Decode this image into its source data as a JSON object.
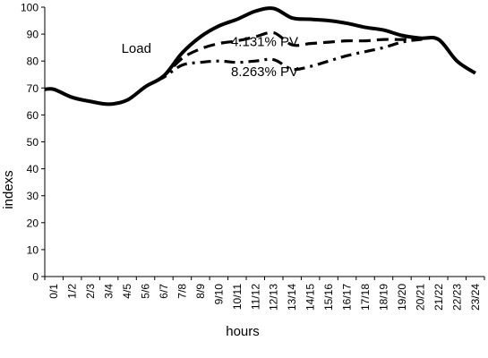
{
  "chart_data": {
    "type": "line",
    "xlabel": "hours",
    "ylabel": "indexs",
    "ylim": [
      0,
      100
    ],
    "yticks": [
      0,
      10,
      20,
      30,
      40,
      50,
      60,
      70,
      80,
      90,
      100
    ],
    "categories": [
      "0/1",
      "1/2",
      "2/3",
      "3/4",
      "4/5",
      "5/6",
      "6/7",
      "7/8",
      "8/9",
      "9/10",
      "10/11",
      "11/12",
      "12/13",
      "13/14",
      "14/15",
      "15/16",
      "16/17",
      "17/18",
      "18/19",
      "19/20",
      "20/21",
      "21/22",
      "22/23",
      "23/24"
    ],
    "grid": false,
    "series": [
      {
        "name": "Load",
        "style": "solid",
        "color": "#000000",
        "values": [
          69.5,
          66.5,
          65.0,
          64.0,
          65.5,
          70.5,
          74.5,
          83.0,
          89.0,
          93.0,
          95.5,
          98.5,
          99.5,
          96.0,
          95.5,
          95.0,
          94.0,
          92.5,
          91.5,
          89.5,
          88.5,
          88.0,
          80.0,
          75.5
        ]
      },
      {
        "name": "4.131% PV",
        "style": "dashed",
        "color": "#000000",
        "values": [
          69.5,
          66.5,
          65.0,
          64.0,
          65.5,
          70.5,
          74.5,
          81.0,
          84.5,
          86.5,
          87.5,
          89.0,
          90.5,
          86.0,
          86.5,
          87.0,
          87.5,
          87.5,
          88.0,
          88.0,
          88.5,
          88.0,
          80.0,
          75.5
        ]
      },
      {
        "name": "8.263% PV",
        "style": "dashdot",
        "color": "#000000",
        "values": [
          69.5,
          66.5,
          65.0,
          64.0,
          65.5,
          70.5,
          74.0,
          78.5,
          79.5,
          80.0,
          79.5,
          80.0,
          80.5,
          77.0,
          78.0,
          80.0,
          82.0,
          83.5,
          85.0,
          87.0,
          88.0,
          88.0,
          80.0,
          75.5
        ]
      }
    ],
    "annotations": [
      {
        "text": "Load",
        "x_cat": 4.5,
        "y": 83.0
      },
      {
        "text": "4.131% PV",
        "x_cat": 11.5,
        "y": 85.5
      },
      {
        "text": "8.263% PV",
        "x_cat": 11.5,
        "y": 74.5
      }
    ]
  }
}
